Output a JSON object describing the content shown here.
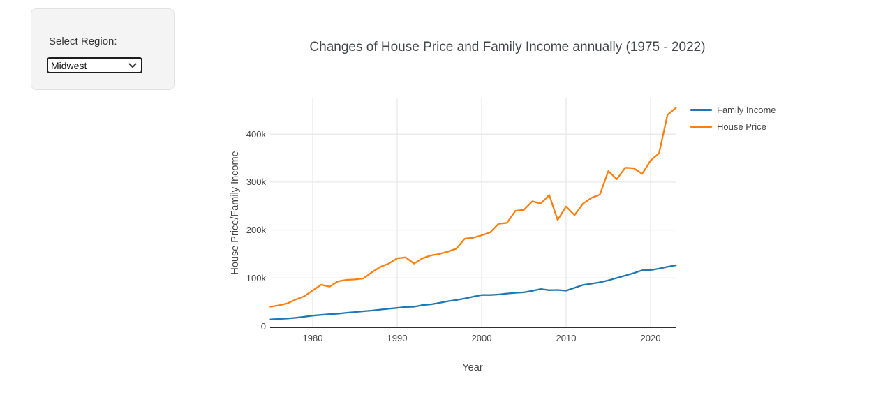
{
  "sidebar": {
    "region_label": "Select Region:",
    "region_select": {
      "value": "Midwest",
      "options": [
        "Midwest"
      ]
    }
  },
  "chart_data": {
    "type": "line",
    "title": "Changes of House Price and Family Income annually (1975 - 2022)",
    "xlabel": "Year",
    "ylabel": "House Price/Family Income",
    "grid": true,
    "legend_position": "outside-top-right",
    "axis_color": "#2f2f2f",
    "grid_color": "#e8e8e8",
    "x_range": [
      1975,
      2023
    ],
    "y_range": [
      0,
      476000
    ],
    "x_tick_values": [
      1980,
      1990,
      2000,
      2010,
      2020
    ],
    "x_tick_labels": [
      "1980",
      "1990",
      "2000",
      "2010",
      "2020"
    ],
    "y_tick_values": [
      0,
      100000,
      200000,
      300000,
      400000
    ],
    "y_tick_labels": [
      "0",
      "100k",
      "200k",
      "300k",
      "400k"
    ],
    "x": [
      1975,
      1976,
      1977,
      1978,
      1979,
      1980,
      1981,
      1982,
      1983,
      1984,
      1985,
      1986,
      1987,
      1988,
      1989,
      1990,
      1991,
      1992,
      1993,
      1994,
      1995,
      1996,
      1997,
      1998,
      1999,
      2000,
      2001,
      2002,
      2003,
      2004,
      2005,
      2006,
      2007,
      2008,
      2009,
      2010,
      2011,
      2012,
      2013,
      2014,
      2015,
      2016,
      2017,
      2018,
      2019,
      2020,
      2021,
      2022,
      2023
    ],
    "series": [
      {
        "name": "Family Income",
        "color": "#1f77b4",
        "values": [
          13500,
          14500,
          15500,
          17000,
          19000,
          21500,
          23000,
          24500,
          25500,
          27500,
          29000,
          30500,
          32000,
          34000,
          36000,
          37500,
          39500,
          40000,
          43500,
          45000,
          48000,
          51500,
          54000,
          57000,
          61000,
          64500,
          64500,
          65500,
          67500,
          69000,
          70000,
          73000,
          77000,
          74500,
          75000,
          73500,
          79500,
          85500,
          88000,
          91000,
          95000,
          100000,
          105000,
          110000,
          116000,
          116500,
          119500,
          123500,
          126500
        ]
      },
      {
        "name": "House Price",
        "color": "#ff7f0e",
        "values": [
          40000,
          43000,
          47000,
          55000,
          62000,
          74000,
          86000,
          82000,
          93000,
          96000,
          97000,
          99000,
          112000,
          123000,
          130000,
          141000,
          143000,
          130000,
          141000,
          147000,
          150000,
          155000,
          161000,
          182000,
          184000,
          189000,
          195000,
          213000,
          215000,
          240000,
          242000,
          260000,
          255000,
          273000,
          221000,
          249000,
          231000,
          255000,
          267000,
          274000,
          323000,
          306000,
          330000,
          329000,
          317000,
          345000,
          360000,
          440000,
          455000
        ]
      }
    ]
  }
}
